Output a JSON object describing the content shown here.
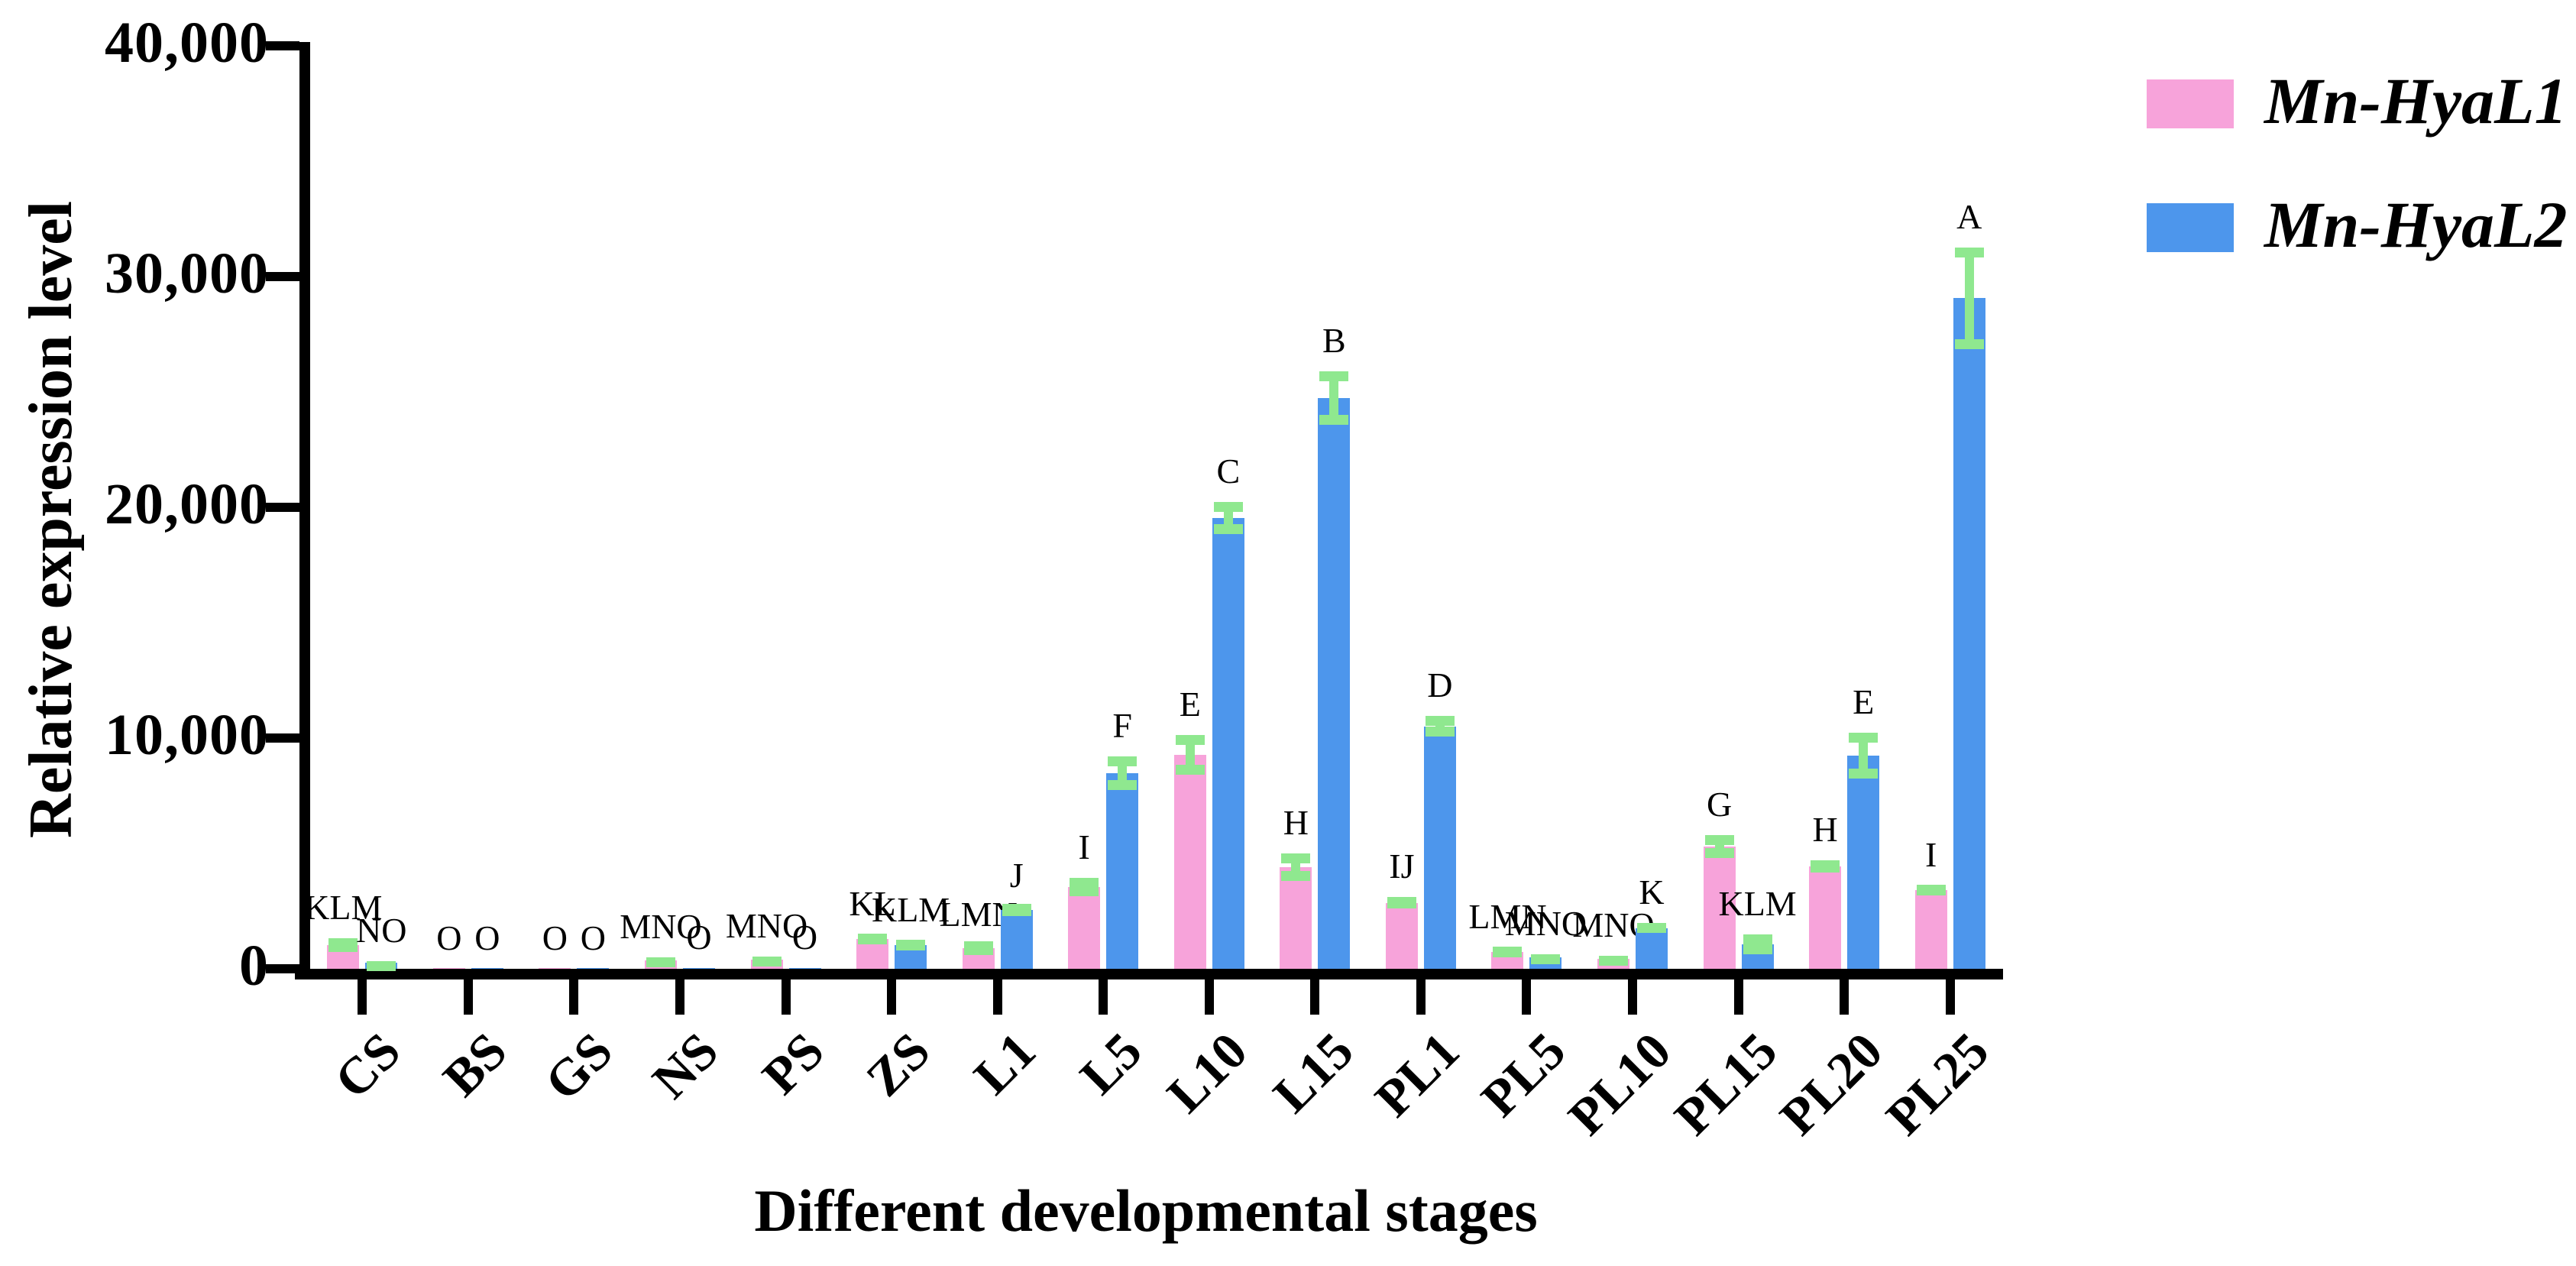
{
  "figure": {
    "y_axis_title": "Relative expression level",
    "x_axis_title": "Different developmental stages",
    "legend": [
      {
        "label": "Mn-HyaL1",
        "color": "#F7A3DA"
      },
      {
        "label": "Mn-HyaL2",
        "color": "#4D96EC"
      }
    ]
  },
  "chart_data": {
    "type": "bar",
    "title": "",
    "xlabel": "Different developmental stages",
    "ylabel": "Relative expression level",
    "ylim": [
      0,
      40000
    ],
    "grid": false,
    "legend_position": "top-right",
    "y_ticks": [
      {
        "value": 0,
        "label": "0"
      },
      {
        "value": 10000,
        "label": "10,000"
      },
      {
        "value": 20000,
        "label": "20,000"
      },
      {
        "value": 30000,
        "label": "30,000"
      },
      {
        "value": 40000,
        "label": "40,000"
      }
    ],
    "categories": [
      "CS",
      "BS",
      "GS",
      "NS",
      "PS",
      "ZS",
      "L1",
      "L5",
      "L10",
      "L15",
      "PL1",
      "PL5",
      "PL10",
      "PL15",
      "PL20",
      "PL25"
    ],
    "error_bar_color": "#8FE88F",
    "series": [
      {
        "name": "Mn-HyaL1",
        "color": "#F7A3DA",
        "values": [
          1030,
          15,
          15,
          380,
          400,
          1290,
          890,
          3550,
          9270,
          4400,
          2850,
          730,
          430,
          5300,
          4440,
          3410
        ],
        "errors": [
          300,
          0,
          0,
          120,
          130,
          200,
          120,
          400,
          850,
          600,
          250,
          200,
          130,
          490,
          260,
          200
        ],
        "sig_letters": [
          "KLM",
          "O",
          "O",
          "MNO",
          "MNO",
          "KL",
          "LMN",
          "I",
          "E",
          "H",
          "IJ",
          "LMN",
          "MNO",
          "G",
          "H",
          "I"
        ]
      },
      {
        "name": "Mn-HyaL2",
        "color": "#4D96EC",
        "values": [
          260,
          15,
          15,
          25,
          25,
          1030,
          2550,
          8480,
          19540,
          24740,
          10500,
          500,
          1760,
          1060,
          9240,
          29070
        ],
        "errors": [
          80,
          0,
          0,
          0,
          0,
          200,
          170,
          730,
          700,
          1150,
          450,
          120,
          220,
          430,
          1000,
          2200
        ],
        "sig_letters": [
          "NO",
          "O",
          "O",
          "O",
          "O",
          "KLM",
          "J",
          "F",
          "C",
          "B",
          "D",
          "MNO",
          "K",
          "KLM",
          "E",
          "A"
        ]
      }
    ]
  }
}
